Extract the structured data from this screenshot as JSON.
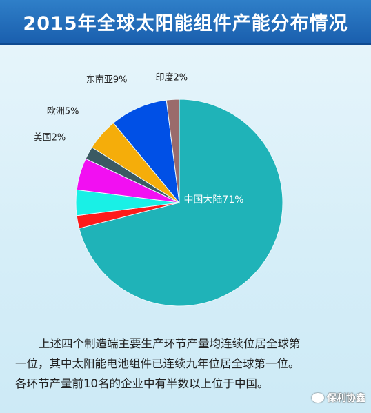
{
  "header": {
    "title": "2015年全球太阳能组件产能分布情况"
  },
  "chart_data": {
    "type": "pie",
    "title": "2015年全球太阳能组件产能分布情况",
    "slices": [
      {
        "label": "中国大陆71%",
        "value": 71,
        "color": "#1fb3b8"
      },
      {
        "label": "",
        "value": 2,
        "color": "#ff1a1a"
      },
      {
        "label": "",
        "value": 4,
        "color": "#19f0e6"
      },
      {
        "label": "",
        "value": 5,
        "color": "#f20ff2"
      },
      {
        "label": "美国2%",
        "value": 2,
        "color": "#3a5a63"
      },
      {
        "label": "欧洲5%",
        "value": 5,
        "color": "#f5ad0a"
      },
      {
        "label": "东南亚9%",
        "value": 9,
        "color": "#0050e6"
      },
      {
        "label": "印度2%",
        "value": 2,
        "color": "#9a6b6b"
      }
    ]
  },
  "caption": {
    "line1": "上述四个制造端主要生产环节产量均连续位居全球第",
    "line2": "一位，其中太阳能电池组件已连续九年位居全球第一位。",
    "line3": "各环节产量前10名的企业中有半数以上位于中国。"
  },
  "watermark": {
    "text": "保利协鑫",
    "icon": "wechat-icon"
  }
}
